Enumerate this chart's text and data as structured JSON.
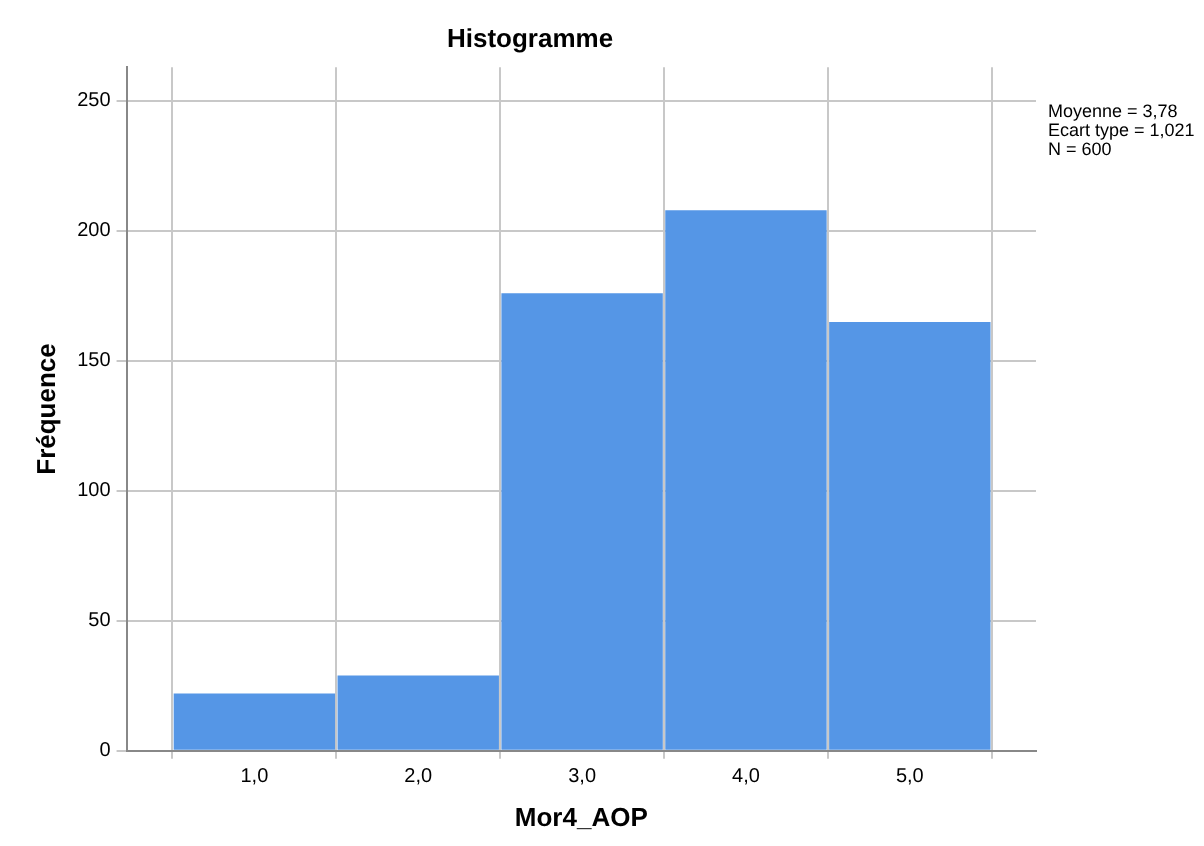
{
  "chart_data": {
    "type": "histogram",
    "title": "Histogramme",
    "xlabel": "Mor4_AOP",
    "ylabel": "Fréquence",
    "bins": [
      0.5,
      1.5,
      2.5,
      3.5,
      4.5,
      5.5
    ],
    "values": [
      22,
      29,
      176,
      208,
      165
    ],
    "color": "#5596e6",
    "xlim": [
      0.22,
      5.77
    ],
    "xticks": [
      {
        "value": 1,
        "label": "1,0"
      },
      {
        "value": 2,
        "label": "2,0"
      },
      {
        "value": 3,
        "label": "3,0"
      },
      {
        "value": 4,
        "label": "4,0"
      },
      {
        "value": 5,
        "label": "5,0"
      }
    ],
    "ylim": [
      0,
      263
    ],
    "yticks": [
      0,
      50,
      100,
      150,
      200,
      250
    ],
    "grid": true,
    "legend": false,
    "annotations": [
      "Moyenne = 3,78\nEcart type = 1,021\nN = 600"
    ]
  }
}
